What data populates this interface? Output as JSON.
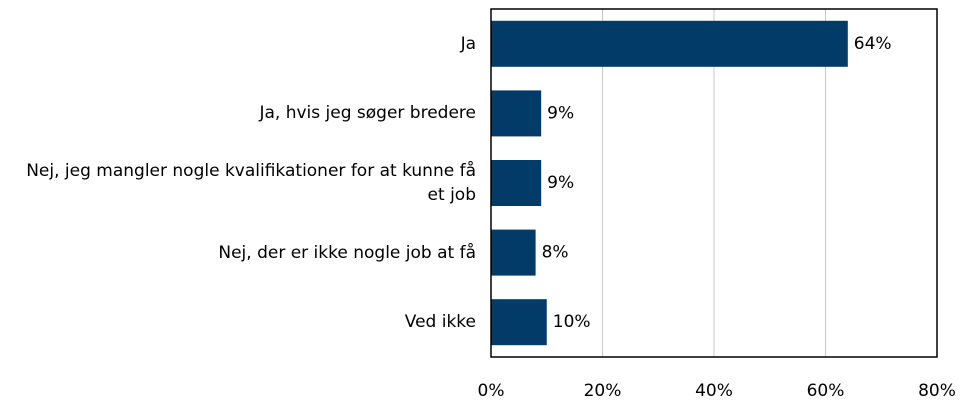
{
  "chart_data": {
    "type": "bar",
    "orientation": "horizontal",
    "categories": [
      "Ja",
      "Ja, hvis jeg søger bredere",
      "Nej, jeg mangler nogle kvalifikationer for at kunne få et job",
      "Nej, der er ikke nogle job at få",
      "Ved ikke"
    ],
    "values": [
      64,
      9,
      9,
      8,
      10
    ],
    "value_labels": [
      "64%",
      "9%",
      "9%",
      "8%",
      "10%"
    ],
    "color": "#033b68",
    "xlim": [
      0,
      80
    ],
    "xticks": [
      {
        "value": 0,
        "label": "0%"
      },
      {
        "value": 20,
        "label": "20%"
      },
      {
        "value": 40,
        "label": "40%"
      },
      {
        "value": 60,
        "label": "60%"
      },
      {
        "value": 80,
        "label": "80%"
      }
    ],
    "grid": true
  }
}
